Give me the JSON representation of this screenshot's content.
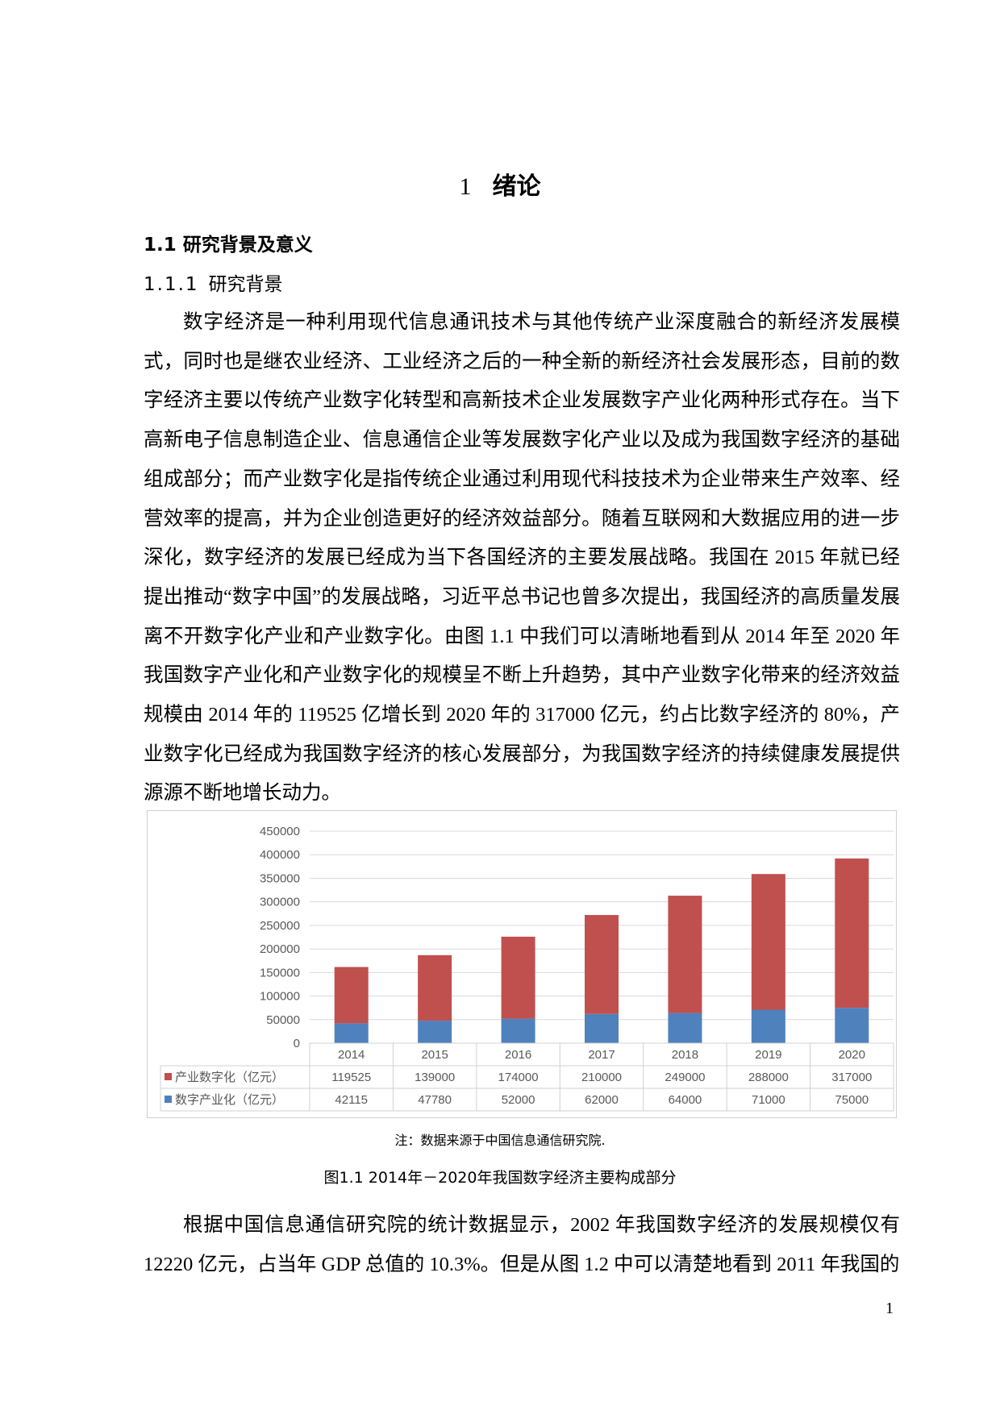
{
  "chapter": {
    "number": "1",
    "title": "绪论"
  },
  "section": {
    "title": "1.1 研究背景及意义"
  },
  "subsection": {
    "number": "1.1.1",
    "title": "研究背景"
  },
  "paragraphs": [
    "数字经济是一种利用现代信息通讯技术与其他传统产业深度融合的新经济发展模式，同时也是继农业经济、工业经济之后的一种全新的新经济社会发展形态，目前的数字经济主要以传统产业数字化转型和高新技术企业发展数字产业化两种形式存在。当下高新电子信息制造企业、信息通信企业等发展数字化产业以及成为我国数字经济的基础组成部分；而产业数字化是指传统企业通过利用现代科技技术为企业带来生产效率、经营效率的提高，并为企业创造更好的经济效益部分。随着互联网和大数据应用的进一步深化，数字经济的发展已经成为当下各国经济的主要发展战略。我国在 2015 年就已经提出推动“数字中国”的发展战略，习近平总书记也曾多次提出，我国经济的高质量发展离不开数字化产业和产业数字化。由图 1.1 中我们可以清晰地看到从 2014 年至 2020 年我国数字产业化和产业数字化的规模呈不断上升趋势，其中产业数字化带来的经济效益规模由 2014 年的 119525 亿增长到 2020 年的 317000 亿元，约占比数字经济的 80%，产业数字化已经成为我国数字经济的核心发展部分，为我国数字经济的持续健康发展提供源源不断地增长动力。",
    "根据中国信息通信研究院的统计数据显示，2002 年我国数字经济的发展规模仅有 12220 亿元，占当年 GDP 总值的 10.3%。但是从图 1.2 中可以清楚地看到 2011 年我国的"
  ],
  "figure": {
    "note": "注：数据来源于中国信息通信研究院.",
    "caption": "图1.1 2014年－2020年我国数字经济主要构成部分"
  },
  "chart_data": {
    "type": "bar",
    "stacked": true,
    "categories": [
      "2014",
      "2015",
      "2016",
      "2017",
      "2018",
      "2019",
      "2020"
    ],
    "series": [
      {
        "name": "数字产业化（亿元）",
        "values": [
          42115,
          47780,
          52000,
          62000,
          64000,
          71000,
          75000
        ],
        "color": "#4f81bd"
      },
      {
        "name": "产业数字化（亿元）",
        "values": [
          119525,
          139000,
          174000,
          210000,
          249000,
          288000,
          317000
        ],
        "color": "#c0504d"
      }
    ],
    "ylim": [
      0,
      450000
    ],
    "yticks": [
      "0",
      "50000",
      "100000",
      "150000",
      "200000",
      "250000",
      "300000",
      "350000",
      "400000",
      "450000"
    ],
    "grid": true,
    "legend": "data-table-below"
  },
  "page_number": "1"
}
